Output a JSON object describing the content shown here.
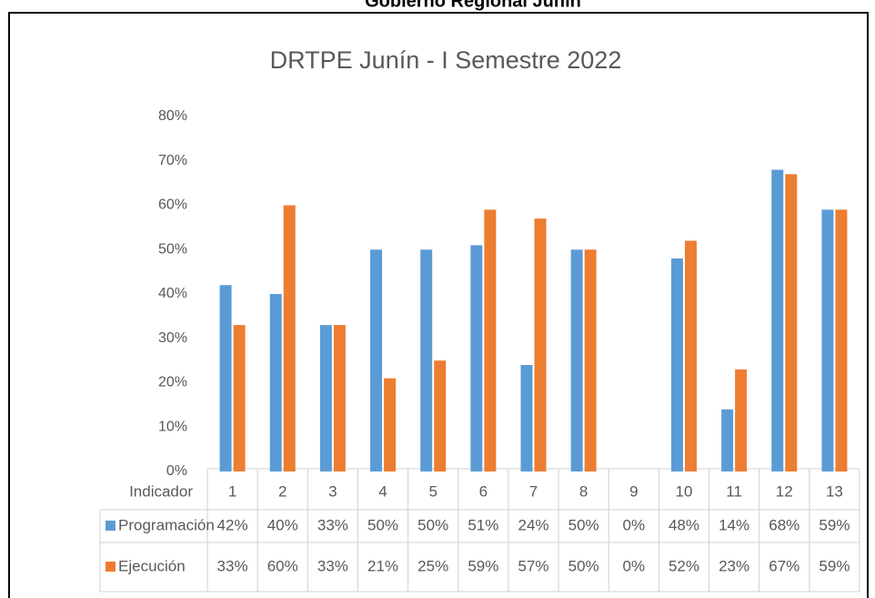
{
  "page_header": "Gobierno Regional Junín",
  "chart_data": {
    "type": "bar",
    "title": "DRTPE Junín - I Semestre 2022",
    "table_header": "Indicador",
    "categories": [
      "1",
      "2",
      "3",
      "4",
      "5",
      "6",
      "7",
      "8",
      "9",
      "10",
      "11",
      "12",
      "13"
    ],
    "series": [
      {
        "name": "Programación",
        "color": "#5b9bd5",
        "values": [
          42,
          40,
          33,
          50,
          50,
          51,
          24,
          50,
          0,
          48,
          14,
          68,
          59
        ],
        "value_labels": [
          "42%",
          "40%",
          "33%",
          "50%",
          "50%",
          "51%",
          "24%",
          "50%",
          "0%",
          "48%",
          "14%",
          "68%",
          "59%"
        ]
      },
      {
        "name": "Ejecución",
        "color": "#ed7d31",
        "values": [
          33,
          60,
          33,
          21,
          25,
          59,
          57,
          50,
          0,
          52,
          23,
          67,
          59
        ],
        "value_labels": [
          "33%",
          "60%",
          "33%",
          "21%",
          "25%",
          "59%",
          "57%",
          "50%",
          "0%",
          "52%",
          "23%",
          "67%",
          "59%"
        ]
      }
    ],
    "ylim": [
      0,
      80
    ],
    "yticks": [
      {
        "value": 0,
        "label": "0%"
      },
      {
        "value": 10,
        "label": "10%"
      },
      {
        "value": 20,
        "label": "20%"
      },
      {
        "value": 30,
        "label": "30%"
      },
      {
        "value": 40,
        "label": "40%"
      },
      {
        "value": 50,
        "label": "50%"
      },
      {
        "value": 60,
        "label": "60%"
      },
      {
        "value": 70,
        "label": "70%"
      },
      {
        "value": 80,
        "label": "80%"
      }
    ],
    "grid": false
  }
}
